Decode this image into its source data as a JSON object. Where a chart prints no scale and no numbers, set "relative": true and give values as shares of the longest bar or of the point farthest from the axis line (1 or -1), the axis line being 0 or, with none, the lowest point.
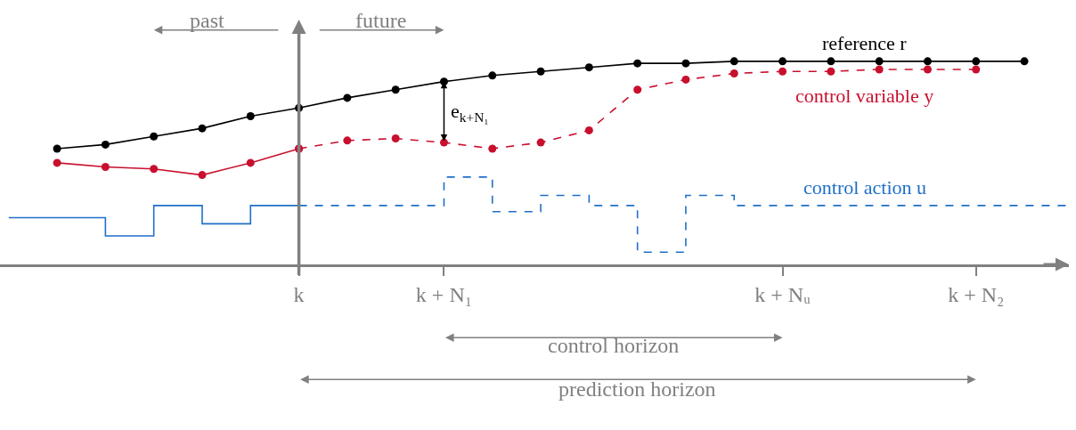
{
  "chart_data": {
    "type": "line",
    "relative": true,
    "legend": false,
    "categories": [
      null,
      null,
      null,
      null,
      null,
      null,
      "k",
      null,
      null,
      "k + N₁",
      null,
      null,
      null,
      null,
      null,
      null,
      "k + Nᵤ",
      null,
      null,
      null,
      "k + N₂",
      null,
      null
    ],
    "series": [
      {
        "name": "reference r",
        "color": "#000000",
        "line_style": "solid",
        "marker": "circle",
        "values": [
          null,
          0.57,
          0.59,
          0.63,
          0.67,
          0.73,
          0.77,
          0.82,
          0.86,
          0.9,
          0.93,
          0.95,
          0.97,
          0.99,
          0.99,
          1,
          1,
          1,
          1,
          1,
          1,
          1,
          null
        ]
      },
      {
        "color": "#c8102e",
        "line_style": "solid",
        "marker": "circle",
        "values": [
          null,
          0.5,
          0.48,
          0.47,
          0.44,
          0.5,
          0.57,
          null,
          null,
          null,
          null,
          null,
          null,
          null,
          null,
          null,
          null,
          null,
          null,
          null,
          null,
          null,
          null
        ]
      },
      {
        "name": "control variable y",
        "color": "#c8102e",
        "line_style": "dashed",
        "marker": "circle",
        "values": [
          null,
          null,
          null,
          null,
          null,
          null,
          0.57,
          0.61,
          0.62,
          0.6,
          0.57,
          0.6,
          0.66,
          0.86,
          0.91,
          0.94,
          0.95,
          0.95,
          0.96,
          0.96,
          0.96,
          null,
          null
        ]
      },
      {
        "type": "step",
        "color": "#1f6fc8",
        "line_style": "solid",
        "marker": "none",
        "values": [
          0.23,
          0.23,
          0.14,
          0.29,
          0.2,
          0.29,
          0.29,
          null,
          null,
          null,
          null,
          null,
          null,
          null,
          null,
          null,
          null,
          null,
          null,
          null,
          null,
          null,
          null
        ]
      },
      {
        "name": "control action u",
        "type": "step",
        "color": "#1f6fc8",
        "line_style": "dashed",
        "marker": "none",
        "values": [
          null,
          null,
          null,
          null,
          null,
          null,
          0.29,
          0.29,
          0.29,
          0.43,
          0.26,
          0.34,
          0.29,
          0.06,
          0.34,
          0.29,
          0.29,
          0.29,
          0.29,
          0.29,
          0.29,
          0.29,
          0.29
        ]
      }
    ],
    "annotations": [
      "past",
      "future",
      "control horizon",
      "prediction horizon",
      "e$_{k+N₁}$"
    ]
  }
}
